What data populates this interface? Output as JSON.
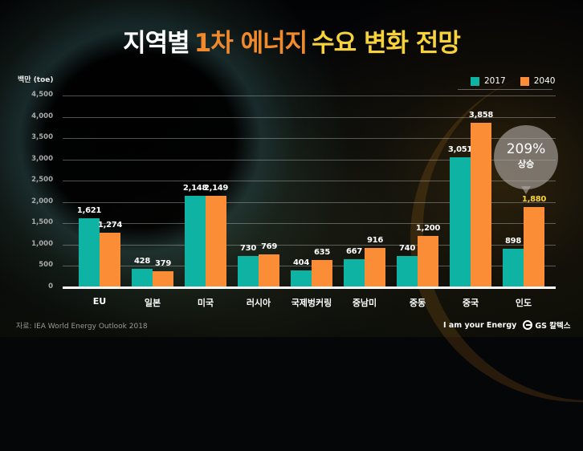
{
  "title": {
    "part1": "지역별",
    "part2": "1차 에너지",
    "part3": "수요 변화 전망"
  },
  "colors": {
    "series_2017": "#0eb3a3",
    "series_2040": "#fb8d37",
    "title_orange": "#f08a2c",
    "title_yellow": "#f7d23a",
    "highlight_value": "#f7d23a"
  },
  "axis": {
    "unit_label": "백만 (toe)",
    "yticks": [
      "0",
      "500",
      "1,000",
      "1,500",
      "2,000",
      "2,500",
      "3,000",
      "3,500",
      "4,000",
      "4,500"
    ]
  },
  "legend": [
    {
      "label": "2017"
    },
    {
      "label": "2040"
    }
  ],
  "callout": {
    "percent": "209%",
    "label": "상승"
  },
  "bars": [
    {
      "region": "EU",
      "v2017": "1,621",
      "v2040": "1,274"
    },
    {
      "region": "일본",
      "v2017": "428",
      "v2040": "379"
    },
    {
      "region": "미국",
      "v2017": "2,148",
      "v2040": "2,149"
    },
    {
      "region": "러시아",
      "v2017": "730",
      "v2040": "769"
    },
    {
      "region": "국제벙커링",
      "v2017": "404",
      "v2040": "635"
    },
    {
      "region": "중남미",
      "v2017": "667",
      "v2040": "916"
    },
    {
      "region": "중동",
      "v2017": "740",
      "v2040": "1,200"
    },
    {
      "region": "중국",
      "v2017": "3,051",
      "v2040": "3,858"
    },
    {
      "region": "인도",
      "v2017": "898",
      "v2040": "1,880"
    }
  ],
  "footer": {
    "source": "자료:  IEA World Energy Outlook 2018",
    "slogan": "I am your Energy",
    "brand": "GS 칼텍스"
  },
  "chart_data": {
    "type": "bar",
    "title": "지역별 1차 에너지 수요 변화 전망",
    "xlabel": "",
    "ylabel": "백만 (toe)",
    "ylim": [
      0,
      4500
    ],
    "grid": true,
    "legend_position": "top-right",
    "categories": [
      "EU",
      "일본",
      "미국",
      "러시아",
      "국제벙커링",
      "중남미",
      "중동",
      "중국",
      "인도"
    ],
    "series": [
      {
        "name": "2017",
        "values": [
          1621,
          428,
          2148,
          730,
          404,
          667,
          740,
          3051,
          898
        ]
      },
      {
        "name": "2040",
        "values": [
          1274,
          379,
          2149,
          769,
          635,
          916,
          1200,
          3858,
          1880
        ]
      }
    ],
    "annotations": [
      {
        "category": "인도",
        "series": "2040",
        "text": "209% 상승"
      }
    ]
  }
}
